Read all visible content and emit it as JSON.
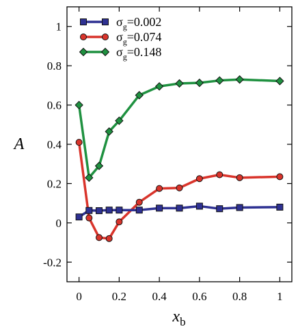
{
  "chart_data": {
    "type": "line",
    "title": "",
    "xlabel": {
      "main": "x",
      "sub": "b"
    },
    "ylabel": "A",
    "xlim": [
      -0.06,
      1.06
    ],
    "ylim": [
      -0.3,
      1.1
    ],
    "xticks": [
      0,
      0.2,
      0.4,
      0.6,
      0.8,
      1
    ],
    "xtick_labels": [
      "0",
      "0.2",
      "0.4",
      "0.6",
      "0.8",
      "1"
    ],
    "yticks": [
      -0.2,
      0,
      0.2,
      0.4,
      0.6,
      0.8,
      1
    ],
    "ytick_labels": [
      "-0.2",
      "0",
      "0.2",
      "0.4",
      "0.6",
      "0.8",
      "1"
    ],
    "grid": false,
    "legend_position": "top-left",
    "series": [
      {
        "legend_sym": "σ",
        "legend_sub": "g",
        "legend_val": "=0.002",
        "color": "#2e3192",
        "marker": "square",
        "x": [
          0,
          0.05,
          0.1,
          0.15,
          0.2,
          0.3,
          0.4,
          0.5,
          0.6,
          0.7,
          0.8,
          1.0
        ],
        "y": [
          0.03,
          0.063,
          0.062,
          0.065,
          0.065,
          0.065,
          0.075,
          0.075,
          0.085,
          0.072,
          0.078,
          0.08
        ]
      },
      {
        "legend_sym": "σ",
        "legend_sub": "g",
        "legend_val": "=0.074",
        "color": "#d9342b",
        "marker": "circle",
        "x": [
          0,
          0.05,
          0.1,
          0.15,
          0.2,
          0.3,
          0.4,
          0.5,
          0.6,
          0.7,
          0.8,
          1.0
        ],
        "y": [
          0.41,
          0.025,
          -0.075,
          -0.08,
          0.005,
          0.105,
          0.175,
          0.178,
          0.225,
          0.245,
          0.23,
          0.235
        ]
      },
      {
        "legend_sym": "σ",
        "legend_sub": "g",
        "legend_val": "=0.148",
        "color": "#1f9140",
        "marker": "diamond",
        "x": [
          0,
          0.05,
          0.1,
          0.15,
          0.2,
          0.3,
          0.4,
          0.5,
          0.6,
          0.7,
          0.8,
          1.0
        ],
        "y": [
          0.6,
          0.23,
          0.29,
          0.465,
          0.52,
          0.65,
          0.695,
          0.71,
          0.713,
          0.725,
          0.73,
          0.722
        ]
      }
    ]
  }
}
